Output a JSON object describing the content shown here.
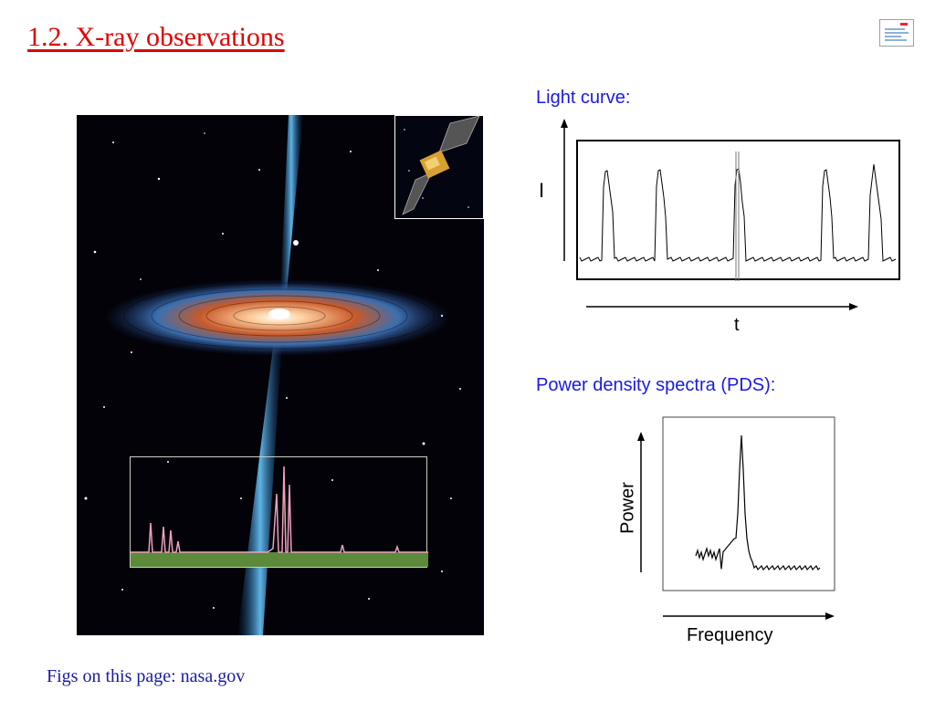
{
  "slide": {
    "title": "1.2. X-ray observations",
    "footer": "Figs on this page: nasa.gov"
  },
  "light_curve": {
    "label": "Light curve:",
    "y_axis_symbol": "I",
    "x_axis_label": "t"
  },
  "pds": {
    "label": "Power density spectra (PDS):",
    "y_axis_label": "Power",
    "x_axis_label": "Frequency"
  },
  "image": {
    "description_icon": "accretion-disk-image",
    "inset_icon": "satellite-icon"
  },
  "colors": {
    "title_red": "#e00000",
    "label_blue": "#1a1ae6",
    "footer_blue": "#1a1aaa"
  }
}
